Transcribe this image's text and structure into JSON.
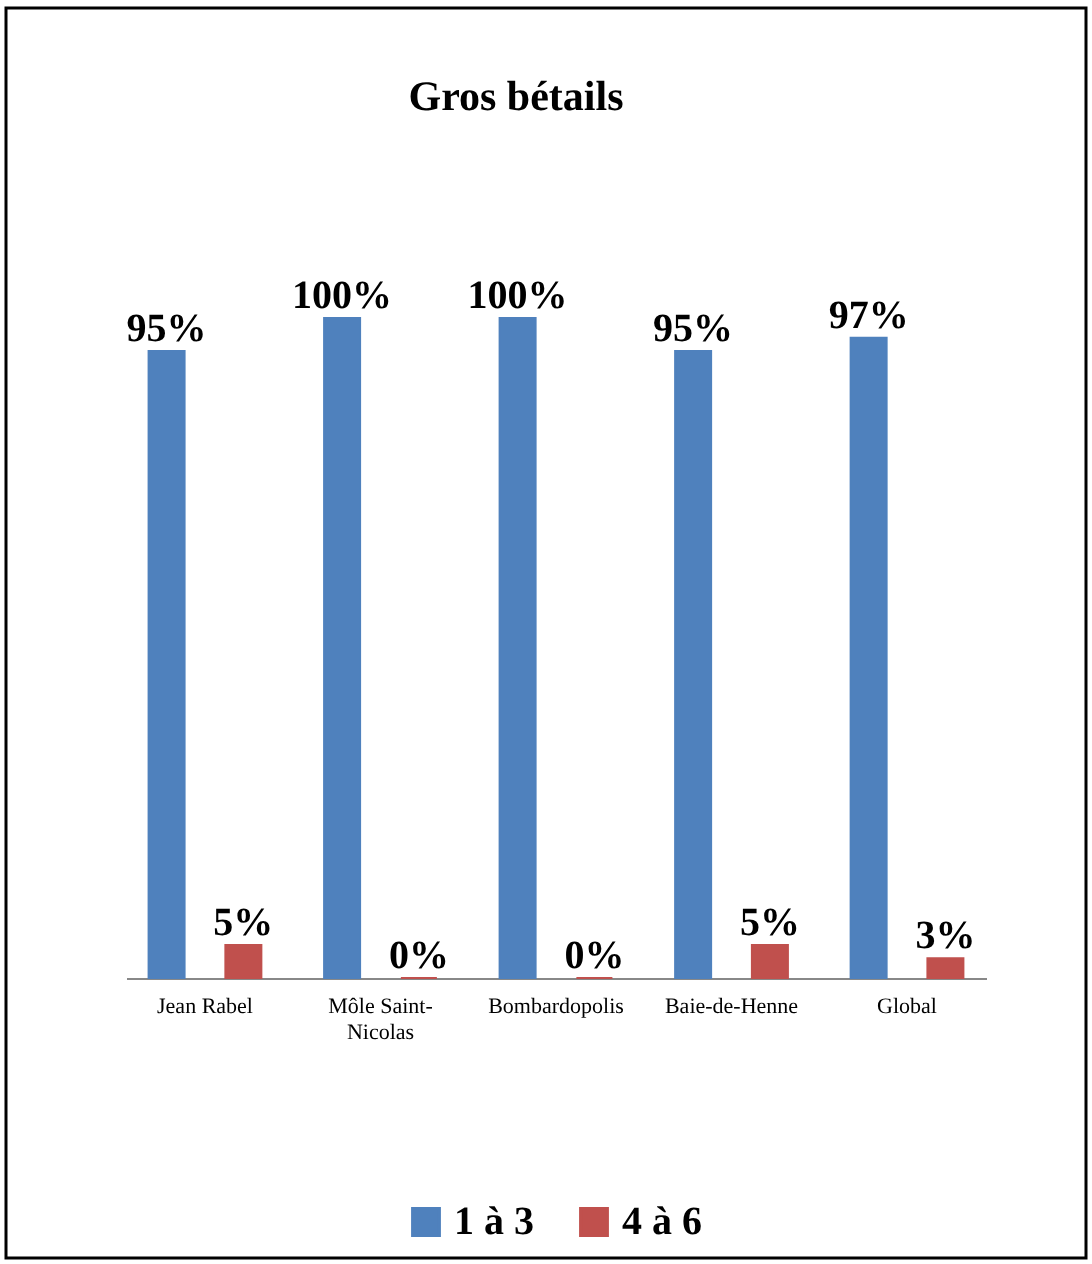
{
  "chart_data": {
    "type": "bar",
    "title": "Gros bétails",
    "categories": [
      "Jean Rabel",
      "Môle Saint-Nicolas",
      "Bombardopolis",
      "Baie-de-Henne",
      "Global"
    ],
    "series": [
      {
        "name": "1 à 3",
        "color": "#4f81bd",
        "values": [
          95,
          100,
          100,
          95,
          97
        ],
        "value_labels": [
          "95%",
          "100%",
          "100%",
          "95%",
          "97%"
        ]
      },
      {
        "name": "4 à 6",
        "color": "#c0504d",
        "values": [
          5,
          0,
          0,
          5,
          3
        ],
        "value_labels": [
          "5%",
          "0%",
          "0%",
          "5%",
          "3%"
        ]
      }
    ],
    "legend": "bottom",
    "grid": false
  }
}
